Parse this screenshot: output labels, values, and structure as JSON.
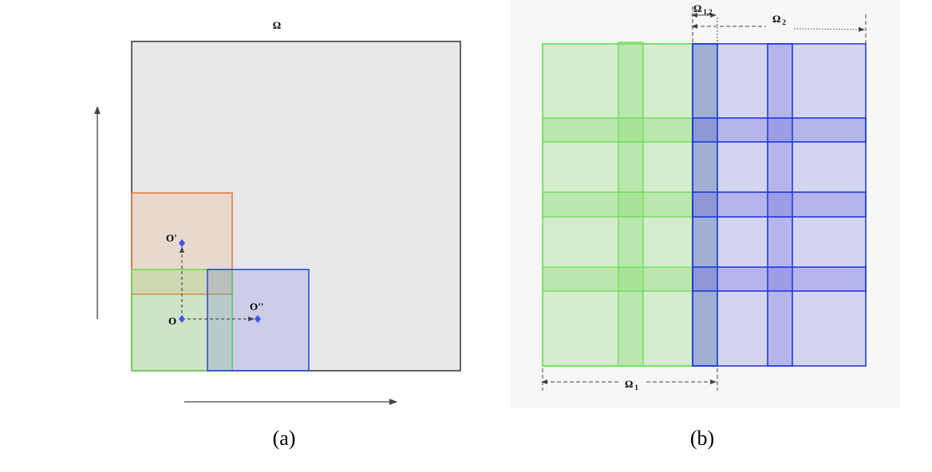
{
  "panel_a": {
    "domain_label": "Ω",
    "points": {
      "o_prime": "O'",
      "o": "O",
      "o_double_prime": "O''"
    },
    "caption": "(a)"
  },
  "panel_b": {
    "omega_12": {
      "symbol": "Ω",
      "subscript": "1,2"
    },
    "omega_2": {
      "symbol": "Ω",
      "subscript": "2"
    },
    "omega_1": {
      "symbol": "Ω",
      "subscript": "1"
    },
    "caption": "(b)"
  }
}
